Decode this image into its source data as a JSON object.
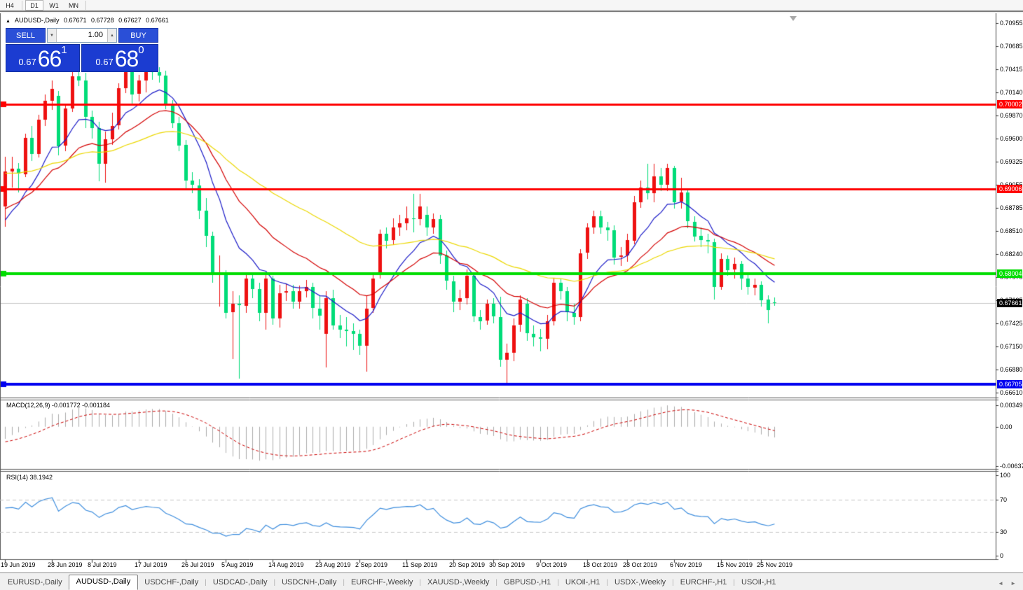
{
  "toolbar": {
    "timeframes": [
      {
        "label": "H4",
        "active": false
      },
      {
        "label": "D1",
        "active": true
      },
      {
        "label": "W1",
        "active": false
      },
      {
        "label": "MN",
        "active": false
      }
    ]
  },
  "header": {
    "collapse_marker": "▲",
    "symbol_label": "AUDUSD-,Daily",
    "open": "0.67671",
    "high": "0.67728",
    "low": "0.67627",
    "close": "0.67661"
  },
  "trade_panel": {
    "sell_label": "SELL",
    "buy_label": "BUY",
    "volume": "1.00",
    "spin_down": "▼",
    "spin_up": "▲",
    "sell_price": {
      "prefix": "0.67",
      "big": "66",
      "sup": "1"
    },
    "buy_price": {
      "prefix": "0.67",
      "big": "68",
      "sup": "0"
    }
  },
  "colors": {
    "up_candle": "#ee1111",
    "down_candle": "#00dc78",
    "ma_fast": "#1a1ac8",
    "ma_mid": "#d40000",
    "ma_slow": "#ecd800",
    "current_line": "#c8c8c8",
    "macd_hist": "#ababab",
    "macd_signal": "#cc0000",
    "rsi_line": "#3e8ede",
    "rsi_level": "#c4c4c4",
    "pane_border": "#5a5a5a",
    "axis_line": "#4a4a4a"
  },
  "chart_data": {
    "type": "candlestick",
    "symbol": "AUDUSD",
    "timeframe": "Daily",
    "price_axis_ticks": [
      "0.70955",
      "0.70685",
      "0.70415",
      "0.70140",
      "0.69870",
      "0.69600",
      "0.69325",
      "0.69055",
      "0.68785",
      "0.68510",
      "0.68240",
      "0.67970",
      "0.67695",
      "0.67425",
      "0.67150",
      "0.66880",
      "0.66610"
    ],
    "hlines": [
      {
        "value": 0.70002,
        "label": "0.70002",
        "color": "#ff0000",
        "width": 3
      },
      {
        "value": 0.69006,
        "label": "0.69006",
        "color": "#ff0000",
        "width": 3
      },
      {
        "value": 0.68004,
        "label": "0.68004",
        "color": "#00dd00",
        "width": 4
      },
      {
        "value": 0.66705,
        "label": "0.66705",
        "color": "#0000f0",
        "width": 4
      }
    ],
    "current_price": {
      "value": 0.67661,
      "label": "0.67661"
    },
    "date_labels": [
      {
        "i": 0,
        "t": "19 Jun 2019"
      },
      {
        "i": 7,
        "t": "28 Jun 2019"
      },
      {
        "i": 13,
        "t": "8 Jul 2019"
      },
      {
        "i": 20,
        "t": "17 Jul 2019"
      },
      {
        "i": 27,
        "t": "26 Jul 2019"
      },
      {
        "i": 33,
        "t": "5 Aug 2019"
      },
      {
        "i": 40,
        "t": "14 Aug 2019"
      },
      {
        "i": 47,
        "t": "23 Aug 2019"
      },
      {
        "i": 53,
        "t": "2 Sep 2019"
      },
      {
        "i": 60,
        "t": "11 Sep 2019"
      },
      {
        "i": 67,
        "t": "20 Sep 2019"
      },
      {
        "i": 73,
        "t": "30 Sep 2019"
      },
      {
        "i": 80,
        "t": "9 Oct 2019"
      },
      {
        "i": 87,
        "t": "18 Oct 2019"
      },
      {
        "i": 93,
        "t": "28 Oct 2019"
      },
      {
        "i": 100,
        "t": "6 Nov 2019"
      },
      {
        "i": 107,
        "t": "15 Nov 2019"
      },
      {
        "i": 113,
        "t": "25 Nov 2019"
      }
    ],
    "moving_averages": [
      {
        "type": "ema",
        "period": 10,
        "color_key": "ma_fast"
      },
      {
        "type": "ema",
        "period": 21,
        "color_key": "ma_mid"
      },
      {
        "type": "ema",
        "period": 50,
        "color_key": "ma_slow"
      }
    ],
    "candles": [
      [
        "2019-06-19",
        0.688,
        0.6938,
        0.6856,
        0.6921
      ],
      [
        "2019-06-20",
        0.6921,
        0.6938,
        0.6902,
        0.6924
      ],
      [
        "2019-06-21",
        0.6924,
        0.6931,
        0.6896,
        0.6918
      ],
      [
        "2019-06-24",
        0.6918,
        0.6966,
        0.6915,
        0.6961
      ],
      [
        "2019-06-25",
        0.6961,
        0.6975,
        0.6934,
        0.6942
      ],
      [
        "2019-06-26",
        0.6942,
        0.6988,
        0.6938,
        0.6982
      ],
      [
        "2019-06-27",
        0.6982,
        0.7012,
        0.6975,
        0.7004
      ],
      [
        "2019-06-28",
        0.7004,
        0.7028,
        0.6993,
        0.7018
      ],
      [
        "2019-07-01",
        0.701,
        0.7016,
        0.694,
        0.6951
      ],
      [
        "2019-07-02",
        0.6951,
        0.7,
        0.6945,
        0.6995
      ],
      [
        "2019-07-03",
        0.6995,
        0.704,
        0.6991,
        0.7033
      ],
      [
        "2019-07-04",
        0.7033,
        0.7042,
        0.7021,
        0.7028
      ],
      [
        "2019-07-05",
        0.7028,
        0.7037,
        0.6972,
        0.6985
      ],
      [
        "2019-07-08",
        0.6985,
        0.6993,
        0.696,
        0.6972
      ],
      [
        "2019-07-09",
        0.6972,
        0.698,
        0.691,
        0.693
      ],
      [
        "2019-07-10",
        0.693,
        0.6968,
        0.6908,
        0.6959
      ],
      [
        "2019-07-11",
        0.6959,
        0.699,
        0.6952,
        0.6975
      ],
      [
        "2019-07-12",
        0.6975,
        0.7025,
        0.6971,
        0.7019
      ],
      [
        "2019-07-15",
        0.7019,
        0.7047,
        0.7013,
        0.704
      ],
      [
        "2019-07-16",
        0.704,
        0.7045,
        0.7001,
        0.7012
      ],
      [
        "2019-07-17",
        0.7012,
        0.7035,
        0.7004,
        0.7028
      ],
      [
        "2019-07-18",
        0.7028,
        0.7056,
        0.7014,
        0.7043
      ],
      [
        "2019-07-19",
        0.7043,
        0.7051,
        0.7029,
        0.7038
      ],
      [
        "2019-07-22",
        0.7038,
        0.7044,
        0.7026,
        0.7034
      ],
      [
        "2019-07-23",
        0.7034,
        0.704,
        0.6995,
        0.7
      ],
      [
        "2019-07-24",
        0.7,
        0.7005,
        0.6972,
        0.6978
      ],
      [
        "2019-07-25",
        0.6978,
        0.6985,
        0.6945,
        0.6952
      ],
      [
        "2019-07-26",
        0.6952,
        0.6958,
        0.69,
        0.691
      ],
      [
        "2019-07-29",
        0.691,
        0.692,
        0.6895,
        0.6905
      ],
      [
        "2019-07-30",
        0.6905,
        0.6912,
        0.6865,
        0.6875
      ],
      [
        "2019-07-31",
        0.6875,
        0.689,
        0.6832,
        0.6845
      ],
      [
        "2019-08-01",
        0.6845,
        0.685,
        0.679,
        0.68
      ],
      [
        "2019-08-02",
        0.68,
        0.6822,
        0.6762,
        0.68
      ],
      [
        "2019-08-05",
        0.68,
        0.6805,
        0.6748,
        0.6755
      ],
      [
        "2019-08-06",
        0.6755,
        0.678,
        0.67,
        0.6765
      ],
      [
        "2019-08-07",
        0.6765,
        0.6775,
        0.6677,
        0.6763
      ],
      [
        "2019-08-08",
        0.6763,
        0.68,
        0.6755,
        0.6795
      ],
      [
        "2019-08-09",
        0.6795,
        0.68,
        0.6772,
        0.6783
      ],
      [
        "2019-08-12",
        0.6783,
        0.679,
        0.6745,
        0.6755
      ],
      [
        "2019-08-13",
        0.6755,
        0.68,
        0.6735,
        0.6795
      ],
      [
        "2019-08-14",
        0.6795,
        0.6798,
        0.674,
        0.6748
      ],
      [
        "2019-08-15",
        0.6748,
        0.6788,
        0.6738,
        0.6778
      ],
      [
        "2019-08-16",
        0.6778,
        0.6789,
        0.6768,
        0.678
      ],
      [
        "2019-08-19",
        0.678,
        0.6788,
        0.676,
        0.6768
      ],
      [
        "2019-08-20",
        0.6768,
        0.6787,
        0.676,
        0.678
      ],
      [
        "2019-08-21",
        0.678,
        0.6793,
        0.6772,
        0.6785
      ],
      [
        "2019-08-22",
        0.6785,
        0.679,
        0.6748,
        0.676
      ],
      [
        "2019-08-23",
        0.676,
        0.6775,
        0.6735,
        0.6752
      ],
      [
        "2019-08-26",
        0.673,
        0.678,
        0.669,
        0.6772
      ],
      [
        "2019-08-27",
        0.6772,
        0.6782,
        0.6735,
        0.674
      ],
      [
        "2019-08-28",
        0.674,
        0.6752,
        0.6725,
        0.6735
      ],
      [
        "2019-08-29",
        0.6735,
        0.675,
        0.6715,
        0.6733
      ],
      [
        "2019-08-30",
        0.6733,
        0.6742,
        0.6711,
        0.673
      ],
      [
        "2019-09-02",
        0.673,
        0.6735,
        0.6705,
        0.6716
      ],
      [
        "2019-09-03",
        0.6716,
        0.6775,
        0.6685,
        0.676
      ],
      [
        "2019-09-04",
        0.676,
        0.68,
        0.6755,
        0.6795
      ],
      [
        "2019-09-05",
        0.68,
        0.6853,
        0.6795,
        0.6848
      ],
      [
        "2019-09-06",
        0.6848,
        0.6855,
        0.683,
        0.684
      ],
      [
        "2019-09-09",
        0.684,
        0.6866,
        0.6835,
        0.6855
      ],
      [
        "2019-09-10",
        0.6855,
        0.687,
        0.6845,
        0.686
      ],
      [
        "2019-09-11",
        0.686,
        0.688,
        0.6852,
        0.6866
      ],
      [
        "2019-09-12",
        0.6866,
        0.6895,
        0.685,
        0.6865
      ],
      [
        "2019-09-13",
        0.6865,
        0.6895,
        0.6858,
        0.688
      ],
      [
        "2019-09-16",
        0.687,
        0.688,
        0.6845,
        0.6855
      ],
      [
        "2019-09-17",
        0.6855,
        0.6872,
        0.6848,
        0.6865
      ],
      [
        "2019-09-18",
        0.6865,
        0.687,
        0.6812,
        0.6822
      ],
      [
        "2019-09-19",
        0.6822,
        0.6828,
        0.6782,
        0.6792
      ],
      [
        "2019-09-20",
        0.6792,
        0.6798,
        0.6755,
        0.6768
      ],
      [
        "2019-09-23",
        0.6768,
        0.6782,
        0.6758,
        0.6772
      ],
      [
        "2019-09-24",
        0.6772,
        0.6806,
        0.6765,
        0.6798
      ],
      [
        "2019-09-25",
        0.6798,
        0.6802,
        0.6744,
        0.675
      ],
      [
        "2019-09-26",
        0.675,
        0.6758,
        0.6735,
        0.6745
      ],
      [
        "2019-09-27",
        0.6745,
        0.677,
        0.674,
        0.6765
      ],
      [
        "2019-09-30",
        0.6765,
        0.6772,
        0.6742,
        0.675
      ],
      [
        "2019-10-01",
        0.675,
        0.6774,
        0.6692,
        0.67
      ],
      [
        "2019-10-02",
        0.67,
        0.6718,
        0.667,
        0.6708
      ],
      [
        "2019-10-03",
        0.6708,
        0.6748,
        0.6698,
        0.674
      ],
      [
        "2019-10-04",
        0.674,
        0.6775,
        0.6732,
        0.677
      ],
      [
        "2019-10-07",
        0.6765,
        0.6772,
        0.6722,
        0.673
      ],
      [
        "2019-10-08",
        0.673,
        0.674,
        0.6715,
        0.6726
      ],
      [
        "2019-10-09",
        0.6726,
        0.6736,
        0.671,
        0.6724
      ],
      [
        "2019-10-10",
        0.6724,
        0.6752,
        0.6712,
        0.6745
      ],
      [
        "2019-10-11",
        0.6745,
        0.6796,
        0.674,
        0.679
      ],
      [
        "2019-10-14",
        0.679,
        0.6795,
        0.677,
        0.678
      ],
      [
        "2019-10-15",
        0.678,
        0.6785,
        0.6745,
        0.6755
      ],
      [
        "2019-10-16",
        0.6755,
        0.6765,
        0.674,
        0.675
      ],
      [
        "2019-10-17",
        0.675,
        0.683,
        0.6745,
        0.6825
      ],
      [
        "2019-10-18",
        0.6825,
        0.686,
        0.6818,
        0.6855
      ],
      [
        "2019-10-21",
        0.6855,
        0.6875,
        0.6848,
        0.6868
      ],
      [
        "2019-10-22",
        0.6868,
        0.6875,
        0.6848,
        0.6855
      ],
      [
        "2019-10-23",
        0.6855,
        0.6862,
        0.684,
        0.6852
      ],
      [
        "2019-10-24",
        0.6852,
        0.6858,
        0.6812,
        0.682
      ],
      [
        "2019-10-25",
        0.682,
        0.6832,
        0.681,
        0.6822
      ],
      [
        "2019-10-28",
        0.6822,
        0.6848,
        0.6815,
        0.684
      ],
      [
        "2019-10-29",
        0.684,
        0.6892,
        0.6835,
        0.6885
      ],
      [
        "2019-10-30",
        0.6885,
        0.691,
        0.6878,
        0.6902
      ],
      [
        "2019-10-31",
        0.6902,
        0.693,
        0.6888,
        0.6895
      ],
      [
        "2019-11-01",
        0.6895,
        0.693,
        0.6885,
        0.6915
      ],
      [
        "2019-11-04",
        0.6915,
        0.6925,
        0.6898,
        0.6905
      ],
      [
        "2019-11-05",
        0.6905,
        0.693,
        0.6898,
        0.6925
      ],
      [
        "2019-11-06",
        0.6925,
        0.6928,
        0.6878,
        0.6885
      ],
      [
        "2019-11-07",
        0.6885,
        0.6914,
        0.6878,
        0.6896
      ],
      [
        "2019-11-08",
        0.6896,
        0.69,
        0.6855,
        0.6862
      ],
      [
        "2019-11-11",
        0.6862,
        0.6868,
        0.6838,
        0.6845
      ],
      [
        "2019-11-12",
        0.6845,
        0.6855,
        0.6832,
        0.684
      ],
      [
        "2019-11-13",
        0.684,
        0.6848,
        0.6825,
        0.6838
      ],
      [
        "2019-11-14",
        0.6838,
        0.6842,
        0.677,
        0.6785
      ],
      [
        "2019-11-15",
        0.6785,
        0.6825,
        0.6782,
        0.6818
      ],
      [
        "2019-11-18",
        0.6818,
        0.6822,
        0.6798,
        0.6805
      ],
      [
        "2019-11-19",
        0.6805,
        0.682,
        0.6795,
        0.6812
      ],
      [
        "2019-11-20",
        0.6812,
        0.6816,
        0.6782,
        0.6795
      ],
      [
        "2019-11-21",
        0.6795,
        0.68,
        0.6776,
        0.6785
      ],
      [
        "2019-11-22",
        0.6785,
        0.6795,
        0.6775,
        0.6788
      ],
      [
        "2019-11-25",
        0.6788,
        0.6792,
        0.6762,
        0.677
      ],
      [
        "2019-11-26",
        0.677,
        0.6775,
        0.6742,
        0.6758
      ],
      [
        "2019-11-27",
        0.67671,
        0.67728,
        0.67627,
        0.67661
      ]
    ],
    "macd": {
      "name": "MACD(12,26,9)",
      "values_label": "-0.001772 -0.001184",
      "fast": 12,
      "slow": 26,
      "signal": 9,
      "axis_labels": [
        "0.00349",
        "0.00",
        "-0.00637"
      ],
      "axis_values": [
        0.00349,
        0,
        -0.00637
      ]
    },
    "rsi": {
      "name": "RSI(14)",
      "value_label": "38.1942",
      "period": 14,
      "axis_labels": [
        "100",
        "70",
        "30",
        "0"
      ],
      "axis_values": [
        100,
        70,
        30,
        0
      ],
      "levels": [
        70,
        30
      ]
    }
  },
  "tabs": {
    "items": [
      {
        "label": "EURUSD-,Daily",
        "active": false
      },
      {
        "label": "AUDUSD-,Daily",
        "active": true
      },
      {
        "label": "USDCHF-,Daily",
        "active": false
      },
      {
        "label": "USDCAD-,Daily",
        "active": false
      },
      {
        "label": "USDCNH-,Daily",
        "active": false
      },
      {
        "label": "EURCHF-,Weekly",
        "active": false
      },
      {
        "label": "XAUUSD-,Weekly",
        "active": false
      },
      {
        "label": "GBPUSD-,H1",
        "active": false
      },
      {
        "label": "UKOil-,H1",
        "active": false
      },
      {
        "label": "USDX-,Weekly",
        "active": false
      },
      {
        "label": "EURCHF-,H1",
        "active": false
      },
      {
        "label": "USOil-,H1",
        "active": false
      }
    ],
    "scroll_left": "◄",
    "scroll_right": "►"
  }
}
